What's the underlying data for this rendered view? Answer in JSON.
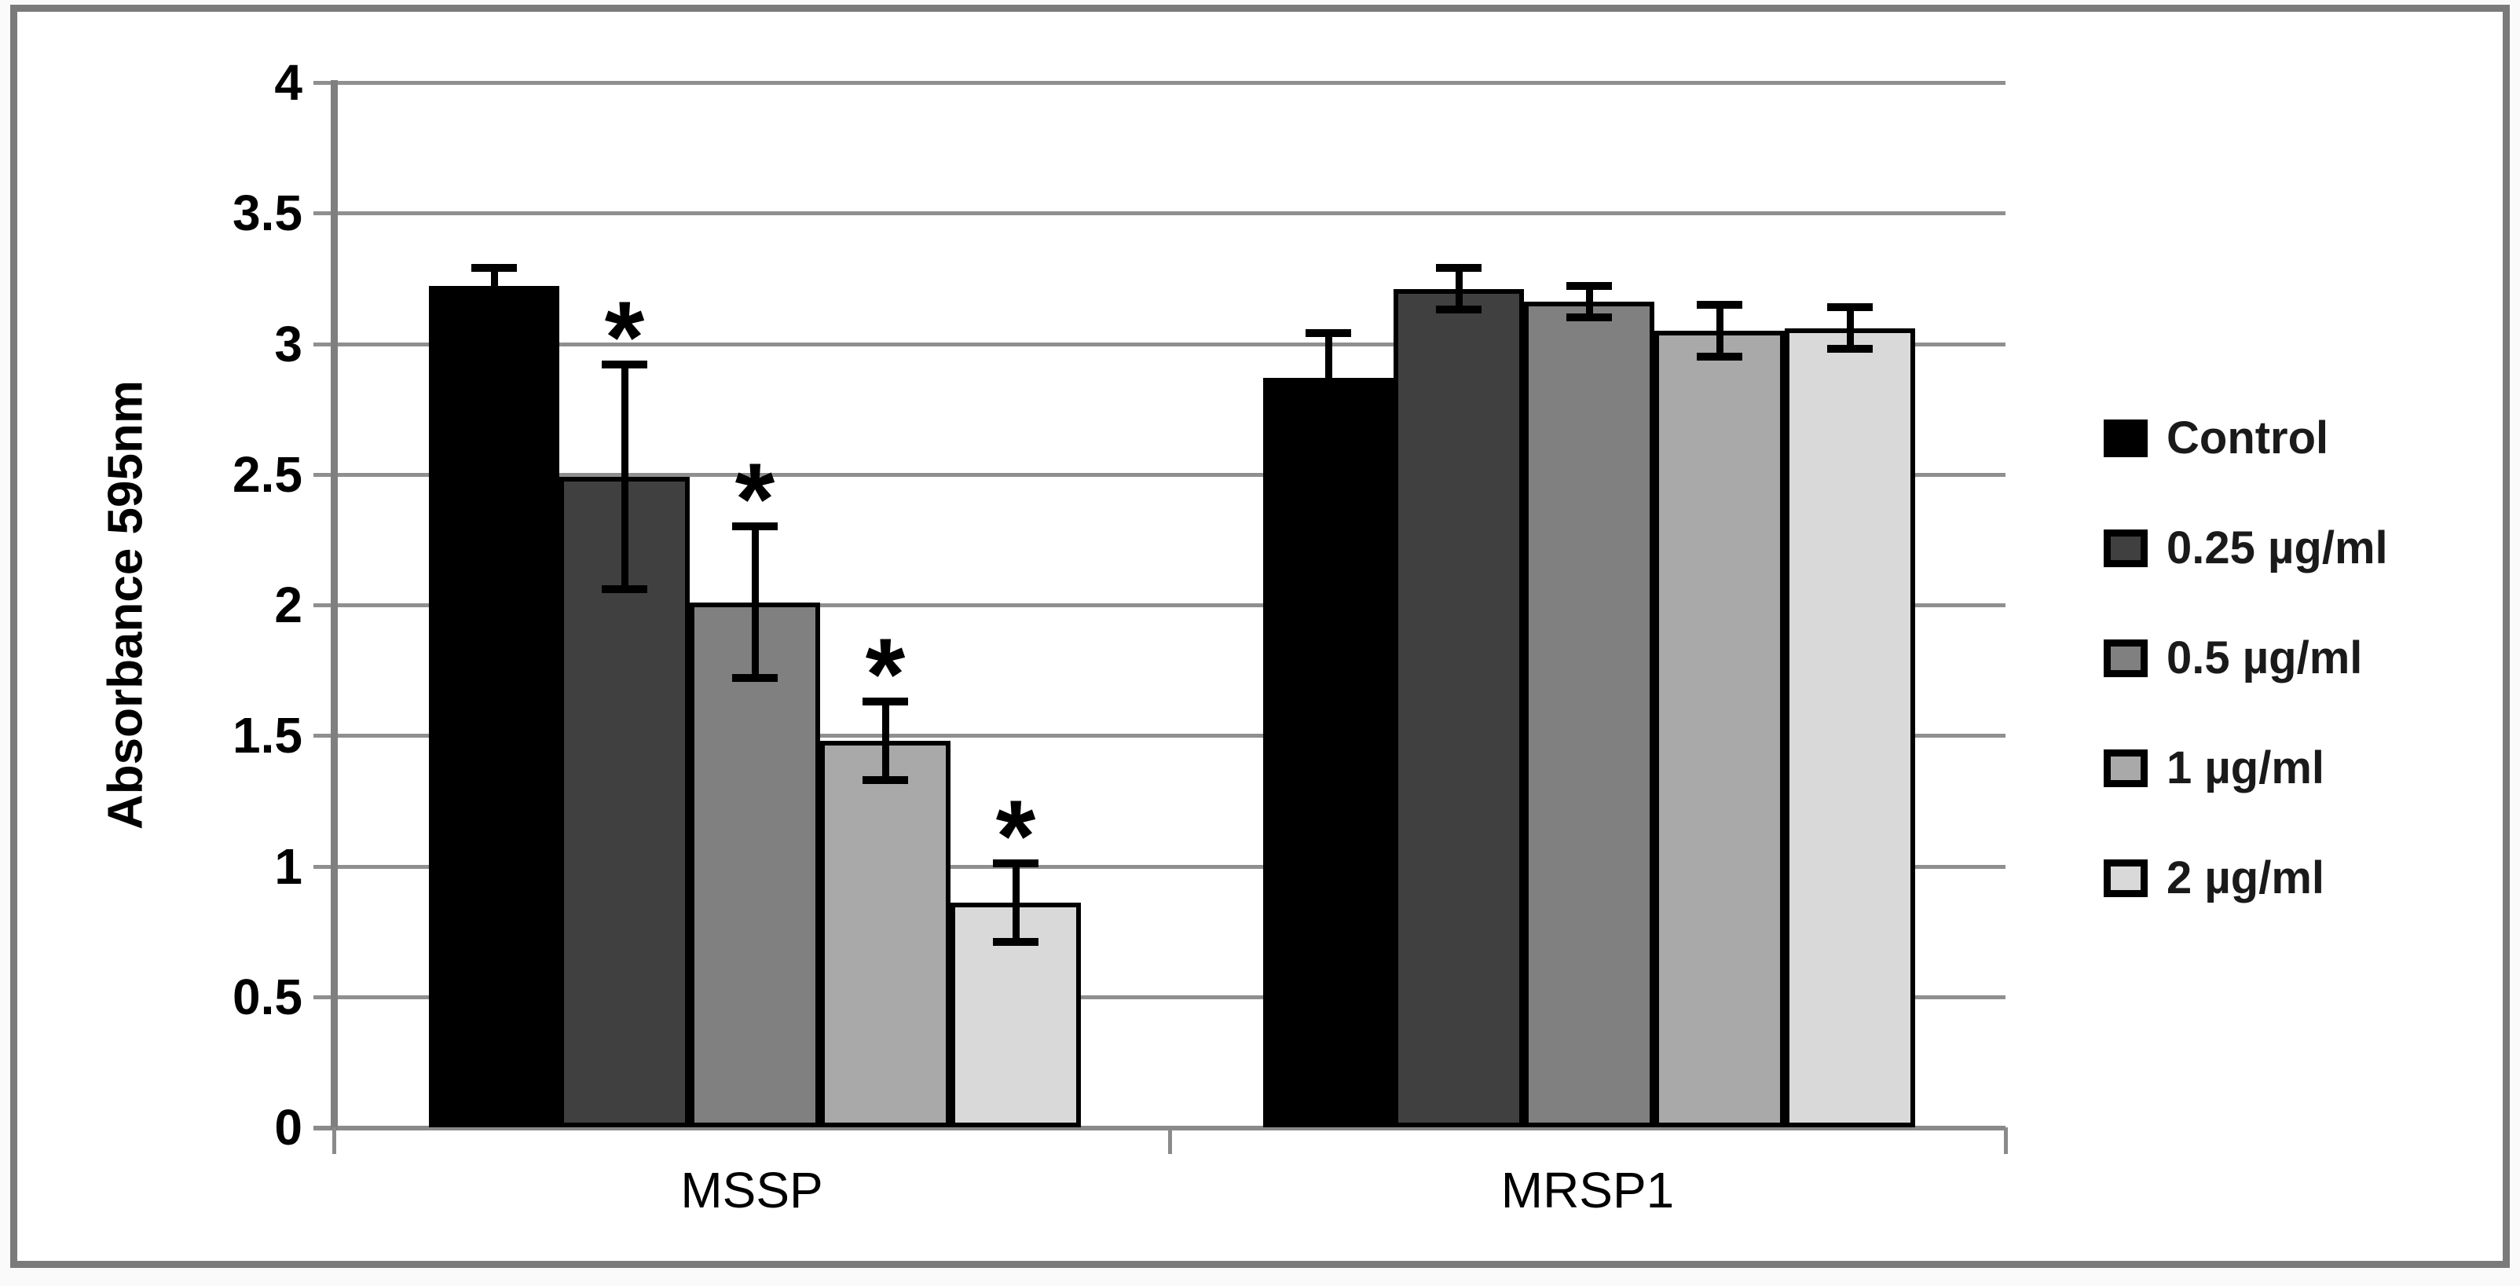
{
  "chart_data": {
    "type": "bar",
    "title": "",
    "xlabel": "",
    "ylabel": "Absorbance 595nm",
    "categories": [
      "MSSP",
      "MRSP1"
    ],
    "ylim": [
      0,
      4
    ],
    "y_ticks": [
      0,
      0.5,
      1,
      1.5,
      2,
      2.5,
      3,
      3.5,
      4
    ],
    "y_tick_labels": [
      "0",
      "0.5",
      "1",
      "1.5",
      "2",
      "2.5",
      "3",
      "3.5",
      "4"
    ],
    "grid": true,
    "legend_position": "right",
    "significance_marker": "*",
    "series": [
      {
        "name": "Control",
        "color": "#000000",
        "values": [
          3.22,
          2.87
        ],
        "errors": [
          0.07,
          0.17
        ],
        "significant": [
          false,
          false
        ]
      },
      {
        "name": "0.25 µg/ml",
        "color": "#404040",
        "values": [
          2.49,
          3.21
        ],
        "errors": [
          0.43,
          0.08
        ],
        "significant": [
          true,
          false
        ]
      },
      {
        "name": "0.5 µg/ml",
        "color": "#808080",
        "values": [
          2.01,
          3.16
        ],
        "errors": [
          0.29,
          0.06
        ],
        "significant": [
          true,
          false
        ]
      },
      {
        "name": "1 µg/ml",
        "color": "#a9a9a9",
        "values": [
          1.48,
          3.05
        ],
        "errors": [
          0.15,
          0.1
        ],
        "significant": [
          true,
          false
        ]
      },
      {
        "name": "2 µg/ml",
        "color": "#d9d9d9",
        "values": [
          0.86,
          3.06
        ],
        "errors": [
          0.15,
          0.08
        ],
        "significant": [
          true,
          false
        ]
      }
    ]
  }
}
